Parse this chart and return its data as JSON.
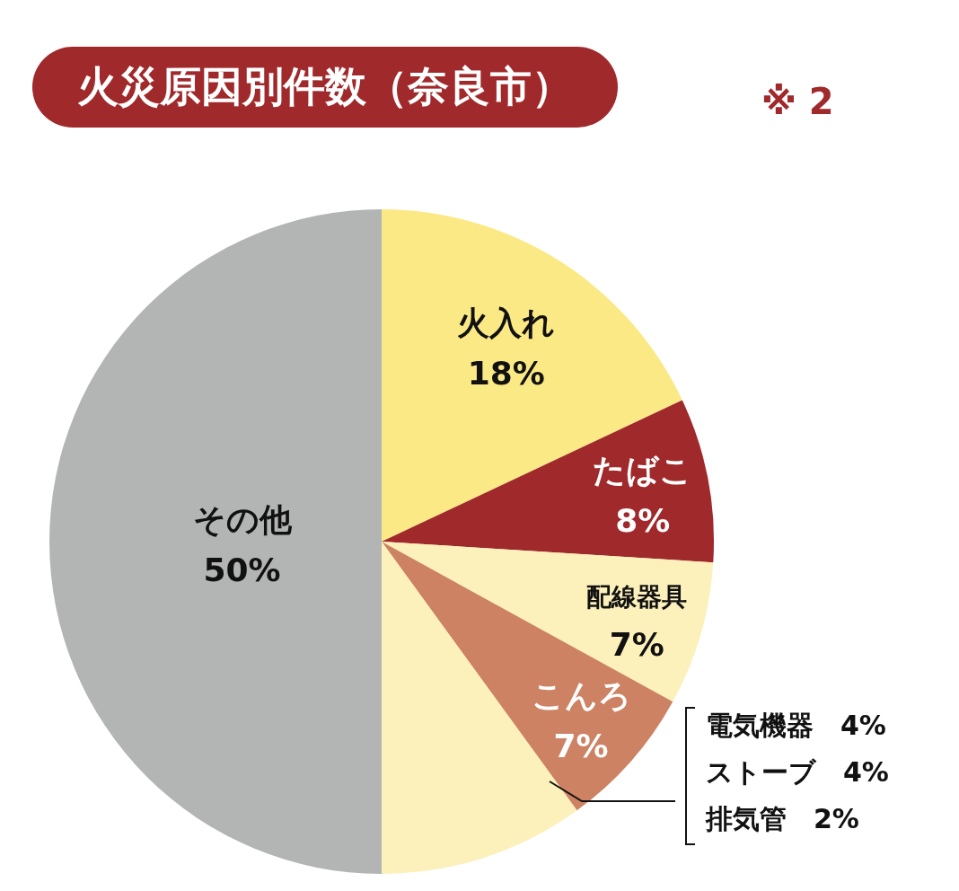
{
  "chart_data": {
    "type": "pie",
    "title": "火災原因別件数（奈良市）",
    "annotations": [
      "※ 2",
      "電気機器　4%",
      "ストーブ　4%",
      "排気管　2%"
    ],
    "categories": [
      "火入れ",
      "たばこ",
      "配線器具",
      "こんろ",
      null,
      "その他"
    ],
    "values": [
      18,
      8,
      7,
      7,
      10,
      50
    ],
    "value_labels": [
      "18%",
      "8%",
      "7%",
      "7%",
      null,
      "50%"
    ],
    "colors": [
      "#fbe985",
      "#a0292b",
      "#fcf0bb",
      "#cc8263",
      "#fcf0bb",
      "#b3b4b4"
    ],
    "legend": false
  }
}
